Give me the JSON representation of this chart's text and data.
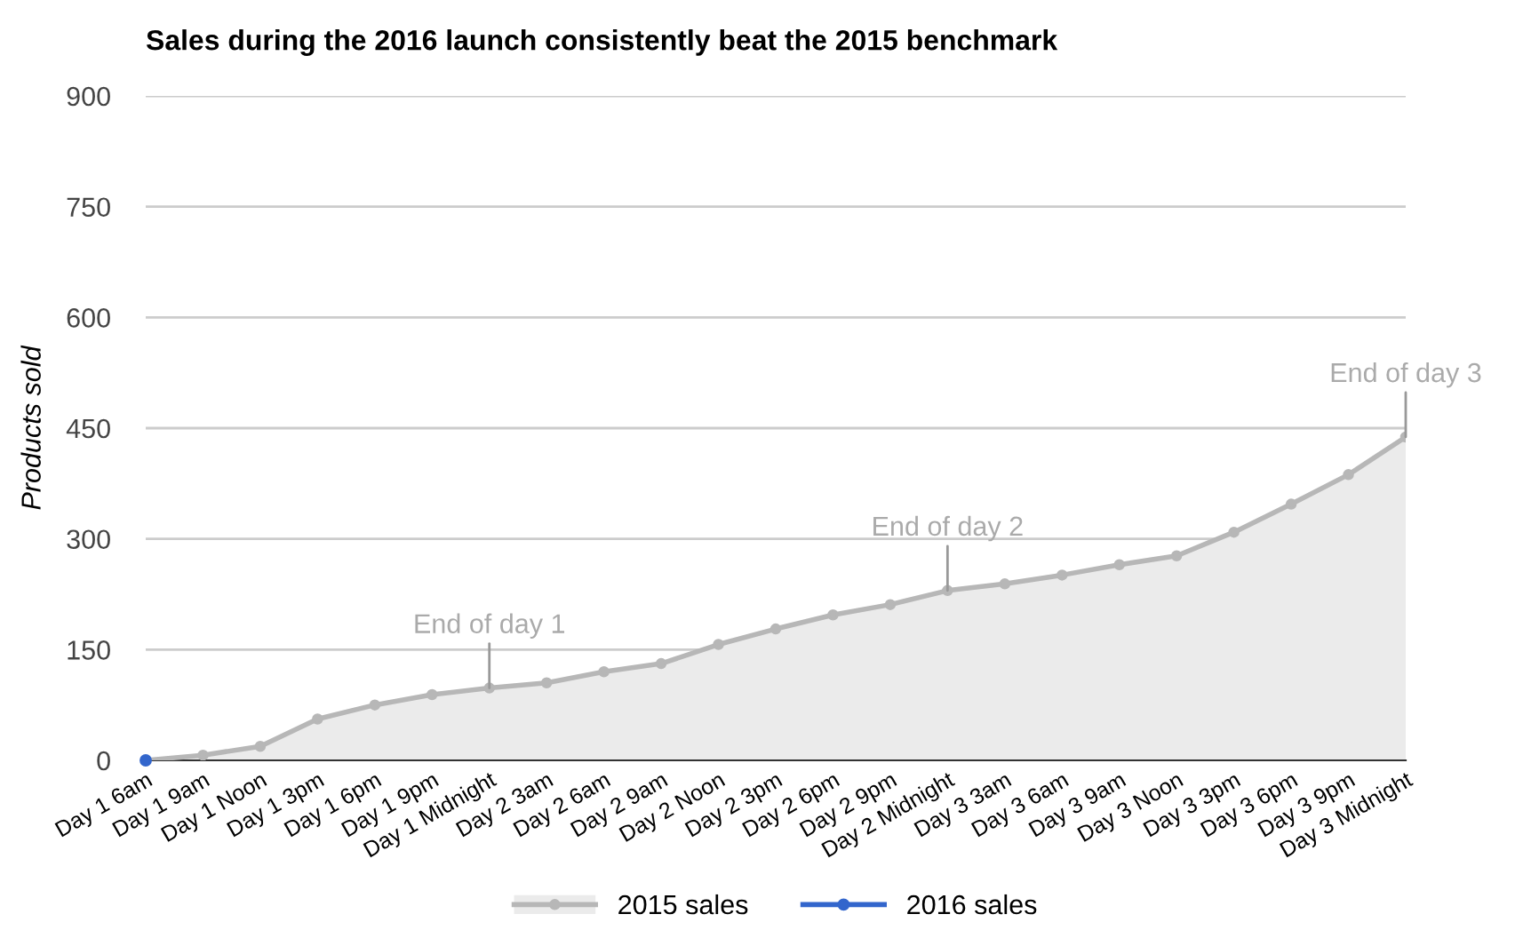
{
  "chart_data": {
    "type": "area",
    "title": "Sales during the 2016 launch consistently beat the 2015 benchmark",
    "ylabel": "Products sold",
    "categories": [
      "Day 1 6am",
      "Day 1 9am",
      "Day 1 Noon",
      "Day 1 3pm",
      "Day 1 6pm",
      "Day 1 9pm",
      "Day 1 Midnight",
      "Day 2 3am",
      "Day 2 6am",
      "Day 2 9am",
      "Day 2 Noon",
      "Day 2 3pm",
      "Day 2 6pm",
      "Day 2 9pm",
      "Day 2 Midnight",
      "Day 3 3am",
      "Day 3 6am",
      "Day 3 9am",
      "Day 3 Noon",
      "Day 3 3pm",
      "Day 3 6pm",
      "Day 3 9pm",
      "Day 3 Midnight"
    ],
    "series": [
      {
        "name": "2015 sales",
        "color": "#b7b7b7",
        "values": [
          0,
          7,
          19,
          56,
          75,
          89,
          98,
          105,
          120,
          131,
          157,
          178,
          197,
          211,
          230,
          239,
          251,
          265,
          277,
          309,
          347,
          387,
          438
        ]
      },
      {
        "name": "2016 sales",
        "type": "line",
        "color": "#3366cc",
        "values": [
          0,
          null,
          null,
          null,
          null,
          null,
          null,
          null,
          null,
          null,
          null,
          null,
          null,
          null,
          null,
          null,
          null,
          null,
          null,
          null,
          null,
          null,
          null
        ]
      }
    ],
    "annotations": [
      {
        "text": "End of day 1",
        "x": "Day 1 Midnight",
        "y": 98
      },
      {
        "text": "End of day 2",
        "x": "Day 2 Midnight",
        "y": 230
      },
      {
        "text": "End of day 3",
        "x": "Day 3 Midnight",
        "y": 438
      }
    ],
    "ylim": [
      0,
      900
    ],
    "yticks": [
      0,
      150,
      300,
      450,
      600,
      750,
      900
    ],
    "grid": "y",
    "legend": "bottom",
    "marker": "circle"
  }
}
